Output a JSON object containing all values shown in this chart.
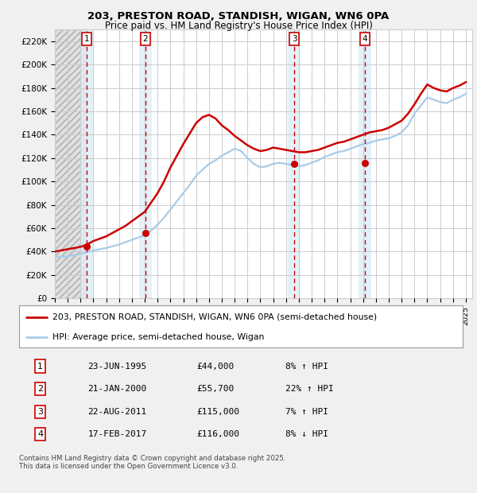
{
  "title_line1": "203, PRESTON ROAD, STANDISH, WIGAN, WN6 0PA",
  "title_line2": "Price paid vs. HM Land Registry's House Price Index (HPI)",
  "ylim": [
    0,
    230000
  ],
  "yticks": [
    0,
    20000,
    40000,
    60000,
    80000,
    100000,
    120000,
    140000,
    160000,
    180000,
    200000,
    220000
  ],
  "ytick_labels": [
    "£0",
    "£20K",
    "£40K",
    "£60K",
    "£80K",
    "£100K",
    "£120K",
    "£140K",
    "£160K",
    "£180K",
    "£200K",
    "£220K"
  ],
  "sale_dates_num": [
    1995.47,
    2000.05,
    2011.64,
    2017.12
  ],
  "sale_prices": [
    44000,
    55700,
    115000,
    116000
  ],
  "sale_labels": [
    "1",
    "2",
    "3",
    "4"
  ],
  "hpi_color": "#a8cce8",
  "price_color": "#cc0000",
  "legend_line1": "203, PRESTON ROAD, STANDISH, WIGAN, WN6 0PA (semi-detached house)",
  "legend_line2": "HPI: Average price, semi-detached house, Wigan",
  "table_data": [
    [
      "1",
      "23-JUN-1995",
      "£44,000",
      "8% ↑ HPI"
    ],
    [
      "2",
      "21-JAN-2000",
      "£55,700",
      "22% ↑ HPI"
    ],
    [
      "3",
      "22-AUG-2011",
      "£115,000",
      "7% ↑ HPI"
    ],
    [
      "4",
      "17-FEB-2017",
      "£116,000",
      "8% ↓ HPI"
    ]
  ],
  "footnote": "Contains HM Land Registry data © Crown copyright and database right 2025.\nThis data is licensed under the Open Government Licence v3.0.",
  "xmin": 1993.0,
  "xmax": 2025.5,
  "hpi_x": [
    1993.0,
    1993.5,
    1994.0,
    1994.5,
    1995.0,
    1995.5,
    1996.0,
    1996.5,
    1997.0,
    1997.5,
    1998.0,
    1998.5,
    1999.0,
    1999.5,
    2000.0,
    2000.5,
    2001.0,
    2001.5,
    2002.0,
    2002.5,
    2003.0,
    2003.5,
    2004.0,
    2004.5,
    2005.0,
    2005.5,
    2006.0,
    2006.5,
    2007.0,
    2007.5,
    2008.0,
    2008.5,
    2009.0,
    2009.5,
    2010.0,
    2010.5,
    2011.0,
    2011.5,
    2012.0,
    2012.5,
    2013.0,
    2013.5,
    2014.0,
    2014.5,
    2015.0,
    2015.5,
    2016.0,
    2016.5,
    2017.0,
    2017.5,
    2018.0,
    2018.5,
    2019.0,
    2019.5,
    2020.0,
    2020.5,
    2021.0,
    2021.5,
    2022.0,
    2022.5,
    2023.0,
    2023.5,
    2024.0,
    2024.5,
    2025.0
  ],
  "hpi_y": [
    35000,
    35500,
    36000,
    37000,
    38000,
    39500,
    41000,
    42000,
    43000,
    44500,
    46000,
    48000,
    50000,
    52000,
    54000,
    58000,
    63000,
    69000,
    76000,
    83000,
    90000,
    97000,
    105000,
    110000,
    115000,
    118000,
    122000,
    125000,
    128000,
    126000,
    120000,
    115000,
    112000,
    113000,
    115000,
    116000,
    115000,
    114000,
    113000,
    114000,
    116000,
    118000,
    121000,
    123000,
    125000,
    126000,
    128000,
    130000,
    132000,
    133000,
    135000,
    136000,
    137000,
    139000,
    142000,
    148000,
    158000,
    165000,
    172000,
    170000,
    168000,
    167000,
    170000,
    172000,
    175000
  ],
  "price_x": [
    1993.0,
    1993.5,
    1994.0,
    1994.5,
    1995.0,
    1995.5,
    1996.0,
    1996.5,
    1997.0,
    1997.5,
    1998.0,
    1998.5,
    1999.0,
    1999.5,
    2000.0,
    2000.5,
    2001.0,
    2001.5,
    2002.0,
    2002.5,
    2003.0,
    2003.5,
    2004.0,
    2004.5,
    2005.0,
    2005.5,
    2006.0,
    2006.5,
    2007.0,
    2007.5,
    2008.0,
    2008.5,
    2009.0,
    2009.5,
    2010.0,
    2010.5,
    2011.0,
    2011.5,
    2012.0,
    2012.5,
    2013.0,
    2013.5,
    2014.0,
    2014.5,
    2015.0,
    2015.5,
    2016.0,
    2016.5,
    2017.0,
    2017.5,
    2018.0,
    2018.5,
    2019.0,
    2019.5,
    2020.0,
    2020.5,
    2021.0,
    2021.5,
    2022.0,
    2022.5,
    2023.0,
    2023.5,
    2024.0,
    2024.5,
    2025.0
  ],
  "price_y": [
    40000,
    41000,
    42000,
    43000,
    44000,
    46000,
    49000,
    51000,
    53000,
    56000,
    59000,
    62000,
    66000,
    70000,
    74000,
    82000,
    90000,
    100000,
    112000,
    122000,
    132000,
    141000,
    150000,
    155000,
    157000,
    154000,
    148000,
    144000,
    139000,
    135000,
    131000,
    128000,
    126000,
    127000,
    129000,
    128000,
    127000,
    126000,
    125000,
    125000,
    126000,
    127000,
    129000,
    131000,
    133000,
    134000,
    136000,
    138000,
    140000,
    142000,
    143000,
    144000,
    146000,
    149000,
    152000,
    158000,
    166000,
    175000,
    183000,
    180000,
    178000,
    177000,
    180000,
    182000,
    185000
  ]
}
